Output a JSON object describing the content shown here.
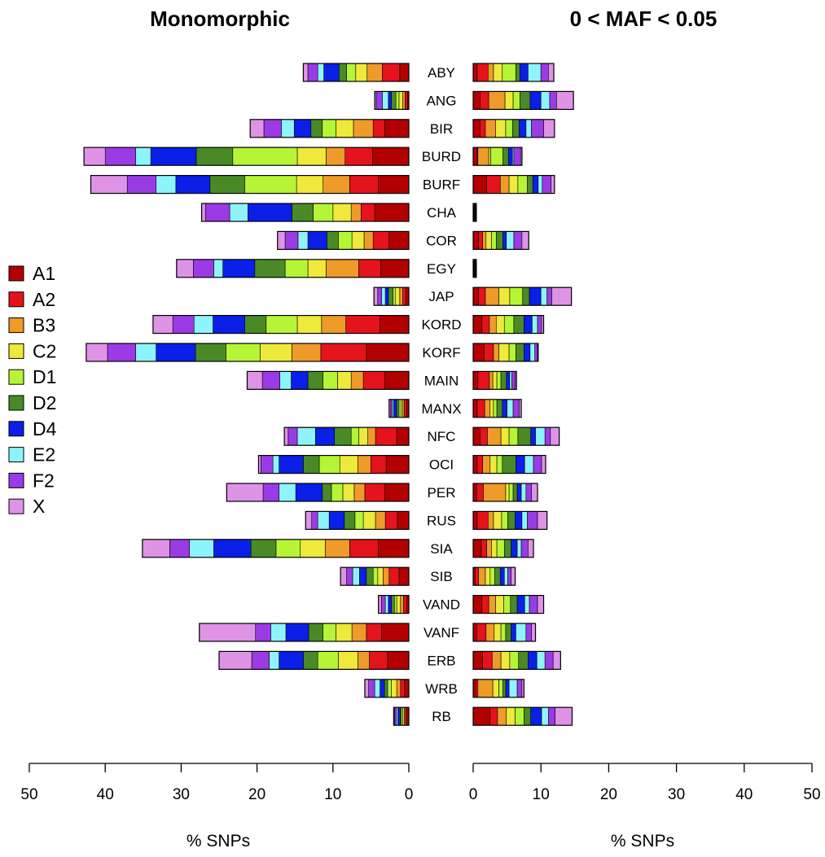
{
  "chart_data": {
    "type": "bar",
    "orientation": "horizontal-stacked",
    "titles": {
      "left": "Monomorphic",
      "right": "0 < MAF < 0.05"
    },
    "xlabel": "% SNPs",
    "xlim": [
      0,
      50
    ],
    "xticks": [
      0,
      10,
      20,
      30,
      40,
      50
    ],
    "segment_order": [
      "A1",
      "A2",
      "B3",
      "C2",
      "D1",
      "D2",
      "D4",
      "E2",
      "F2",
      "X"
    ],
    "legend": [
      {
        "label": "A1",
        "color": "#B30000"
      },
      {
        "label": "A2",
        "color": "#E5131B"
      },
      {
        "label": "B3",
        "color": "#EE9B2A"
      },
      {
        "label": "C2",
        "color": "#EEE93A"
      },
      {
        "label": "D1",
        "color": "#B6F536"
      },
      {
        "label": "D2",
        "color": "#4A8A26"
      },
      {
        "label": "D4",
        "color": "#0A1FE8"
      },
      {
        "label": "E2",
        "color": "#8EF4FB"
      },
      {
        "label": "F2",
        "color": "#9A3BE6"
      },
      {
        "label": "X",
        "color": "#DE93E6"
      }
    ],
    "categories": [
      "ABY",
      "ANG",
      "BIR",
      "BURD",
      "BURF",
      "CHA",
      "COR",
      "EGY",
      "JAP",
      "KORD",
      "KORF",
      "MAIN",
      "MANX",
      "NFC",
      "OCI",
      "PER",
      "RUS",
      "SIA",
      "SIB",
      "VAND",
      "VANF",
      "ERB",
      "WRB",
      "RB"
    ],
    "monomorphic": [
      [
        1.2,
        2.3,
        2.0,
        1.5,
        1.2,
        1.0,
        2.0,
        0.8,
        1.3,
        0.6
      ],
      [
        0.2,
        0.3,
        0.3,
        0.5,
        0.4,
        0.6,
        0.4,
        0.8,
        0.8,
        0.2
      ],
      [
        3.2,
        1.5,
        2.6,
        2.3,
        1.8,
        1.5,
        2.2,
        1.7,
        2.3,
        1.8
      ],
      [
        4.8,
        3.6,
        2.5,
        3.8,
        8.5,
        4.8,
        6.0,
        2.0,
        4.0,
        2.8
      ],
      [
        4.0,
        3.8,
        3.5,
        3.5,
        6.8,
        4.6,
        4.5,
        2.6,
        3.8,
        4.8
      ],
      [
        4.5,
        1.8,
        1.3,
        2.4,
        2.6,
        2.8,
        5.8,
        2.4,
        3.2,
        0.5
      ],
      [
        2.6,
        2.1,
        1.2,
        1.6,
        1.8,
        1.5,
        2.5,
        1.3,
        1.7,
        1.0
      ],
      [
        3.7,
        2.9,
        4.3,
        2.4,
        3.0,
        4.0,
        4.2,
        1.2,
        2.7,
        2.2
      ],
      [
        0.4,
        0.4,
        0.4,
        0.6,
        0.3,
        0.6,
        0.4,
        0.5,
        0.5,
        0.5
      ],
      [
        3.8,
        4.5,
        3.2,
        3.2,
        4.1,
        2.8,
        4.2,
        2.5,
        2.8,
        2.6
      ],
      [
        5.6,
        6.0,
        3.8,
        4.2,
        4.5,
        4.0,
        5.2,
        2.7,
        3.7,
        2.8
      ],
      [
        3.2,
        2.8,
        1.6,
        1.8,
        1.9,
        2.0,
        2.2,
        1.5,
        2.3,
        2.0
      ],
      [
        0.3,
        0.3,
        0.2,
        0.2,
        0.3,
        0.3,
        0.4,
        0.2,
        0.2,
        0.2
      ],
      [
        1.6,
        2.8,
        1.0,
        1.2,
        1.0,
        2.2,
        2.5,
        2.4,
        1.2,
        0.5
      ],
      [
        3.0,
        2.0,
        1.7,
        2.4,
        2.7,
        2.1,
        3.2,
        0.8,
        1.6,
        0.3
      ],
      [
        3.2,
        2.6,
        1.4,
        1.5,
        1.5,
        1.2,
        3.5,
        2.2,
        2.1,
        4.8
      ],
      [
        1.5,
        1.6,
        1.3,
        1.6,
        1.1,
        1.4,
        2.0,
        1.5,
        0.8,
        0.8
      ],
      [
        4.0,
        3.8,
        3.2,
        3.3,
        3.2,
        3.3,
        4.9,
        3.2,
        2.6,
        3.6
      ],
      [
        1.3,
        1.3,
        0.8,
        0.7,
        0.6,
        0.9,
        0.9,
        0.9,
        0.8,
        0.8
      ],
      [
        0.3,
        0.4,
        0.4,
        0.5,
        0.3,
        0.4,
        0.4,
        0.4,
        0.5,
        0.4
      ],
      [
        3.6,
        2.0,
        1.9,
        2.1,
        1.7,
        1.9,
        3.0,
        2.0,
        2.0,
        7.4
      ],
      [
        2.8,
        2.4,
        1.5,
        2.6,
        2.7,
        1.9,
        3.2,
        1.3,
        2.3,
        4.3
      ],
      [
        0.6,
        0.5,
        0.5,
        0.7,
        0.5,
        0.4,
        0.6,
        0.7,
        0.8,
        0.5
      ],
      [
        0.25,
        0.2,
        0.15,
        0.2,
        0.2,
        0.15,
        0.3,
        0.2,
        0.25,
        0.1
      ]
    ],
    "rare": [
      [
        0.6,
        1.6,
        0.8,
        1.3,
        2.0,
        0.6,
        1.2,
        1.9,
        1.1,
        0.8
      ],
      [
        1.0,
        1.3,
        2.4,
        1.2,
        1.0,
        1.5,
        1.6,
        1.3,
        1.0,
        2.5
      ],
      [
        1.0,
        0.8,
        1.5,
        1.5,
        1.0,
        1.0,
        1.0,
        0.8,
        1.8,
        1.6
      ],
      [
        0.6,
        0.1,
        1.6,
        0.3,
        1.8,
        0.8,
        0.6,
        0.2,
        1.0,
        0.2
      ],
      [
        2.0,
        2.0,
        1.3,
        1.3,
        1.4,
        0.8,
        0.8,
        0.6,
        1.3,
        0.5
      ],
      [
        0.05,
        0.05,
        0.05,
        0.05,
        0.05,
        0.05,
        0.05,
        0.03,
        0.05,
        0.04
      ],
      [
        0.8,
        0.6,
        0.5,
        0.8,
        0.7,
        1.0,
        0.5,
        1.1,
        1.2,
        1.0
      ],
      [
        0.05,
        0.05,
        0.05,
        0.05,
        0.05,
        0.05,
        0.05,
        0.03,
        0.05,
        0.04
      ],
      [
        0.8,
        1.0,
        2.0,
        1.6,
        1.9,
        1.0,
        1.7,
        0.9,
        0.7,
        2.9
      ],
      [
        1.3,
        1.1,
        1.0,
        1.2,
        1.4,
        1.5,
        1.2,
        0.8,
        0.6,
        0.3
      ],
      [
        1.6,
        1.4,
        0.8,
        1.5,
        1.0,
        1.2,
        0.9,
        0.7,
        0.4,
        0.1
      ],
      [
        0.7,
        1.7,
        0.5,
        0.6,
        0.6,
        0.8,
        0.5,
        0.3,
        0.5,
        0.2
      ],
      [
        0.6,
        1.1,
        0.8,
        0.5,
        0.5,
        0.8,
        0.7,
        0.9,
        0.9,
        0.3
      ],
      [
        1.0,
        1.1,
        2.0,
        1.2,
        1.3,
        1.9,
        0.7,
        1.4,
        0.8,
        1.3
      ],
      [
        0.6,
        0.8,
        1.1,
        1.0,
        0.8,
        2.0,
        1.3,
        1.3,
        1.2,
        0.6
      ],
      [
        0.5,
        1.0,
        3.3,
        0.5,
        0.6,
        0.6,
        0.6,
        0.7,
        0.8,
        0.9
      ],
      [
        0.6,
        1.6,
        0.8,
        1.2,
        0.9,
        1.1,
        1.0,
        0.8,
        1.5,
        1.4
      ],
      [
        1.2,
        0.8,
        0.7,
        0.8,
        1.1,
        1.0,
        0.9,
        0.6,
        1.0,
        0.8
      ],
      [
        0.3,
        0.5,
        1.0,
        0.7,
        0.7,
        0.8,
        0.6,
        0.5,
        0.5,
        0.6
      ],
      [
        1.3,
        1.0,
        1.0,
        1.2,
        1.0,
        1.0,
        1.1,
        0.7,
        1.2,
        0.9
      ],
      [
        0.5,
        1.4,
        1.2,
        1.0,
        0.7,
        0.8,
        0.7,
        1.5,
        0.8,
        0.6
      ],
      [
        1.4,
        1.4,
        1.3,
        1.3,
        1.3,
        1.4,
        1.3,
        1.2,
        1.2,
        1.1
      ],
      [
        0.4,
        0.3,
        2.2,
        0.9,
        0.6,
        0.4,
        0.5,
        1.2,
        0.7,
        0.3
      ],
      [
        2.5,
        1.1,
        1.3,
        1.3,
        1.3,
        1.0,
        1.6,
        1.0,
        1.0,
        2.5
      ]
    ]
  }
}
